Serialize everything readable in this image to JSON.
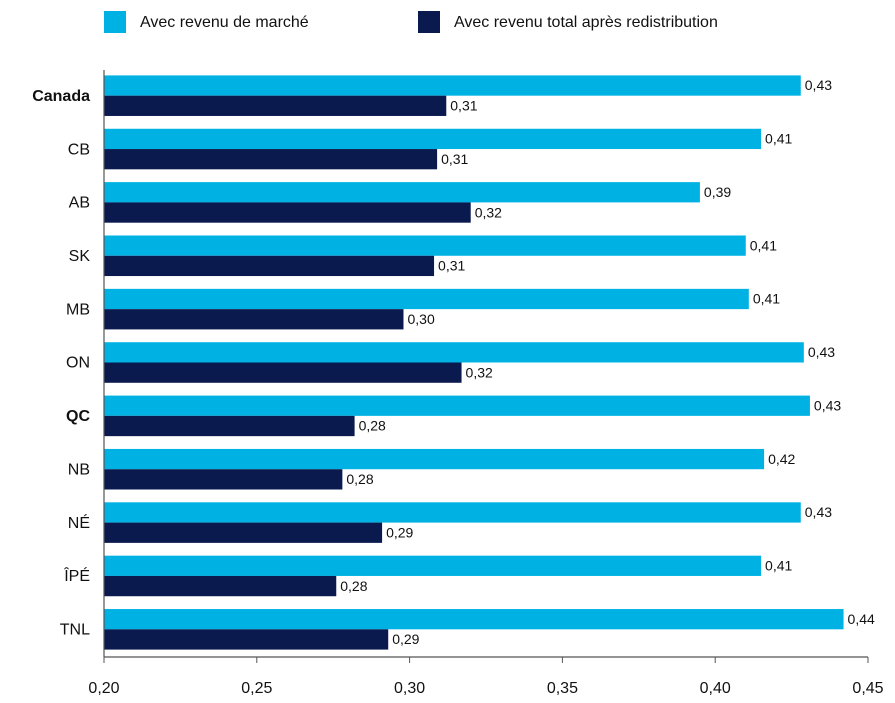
{
  "chart_data": {
    "type": "hbar",
    "categories": [
      "Canada",
      "CB",
      "AB",
      "SK",
      "MB",
      "ON",
      "QC",
      "NB",
      "NÉ",
      "ÎPÉ",
      "TNL"
    ],
    "emphasized_categories": [
      "Canada",
      "QC"
    ],
    "series": [
      {
        "name": "Avec revenu de marché",
        "color": "#00b2e3",
        "values": [
          0.428,
          0.415,
          0.395,
          0.41,
          0.411,
          0.429,
          0.431,
          0.416,
          0.428,
          0.415,
          0.442
        ],
        "value_labels": [
          "0,43",
          "0,41",
          "0,39",
          "0,41",
          "0,41",
          "0,43",
          "0,43",
          "0,42",
          "0,43",
          "0,41",
          "0,44"
        ]
      },
      {
        "name": "Avec revenu total après redistribution",
        "color": "#0a1a4f",
        "values": [
          0.312,
          0.309,
          0.32,
          0.308,
          0.298,
          0.317,
          0.282,
          0.278,
          0.291,
          0.276,
          0.293
        ],
        "value_labels": [
          "0,31",
          "0,31",
          "0,32",
          "0,31",
          "0,30",
          "0,32",
          "0,28",
          "0,28",
          "0,29",
          "0,28",
          "0,29"
        ]
      }
    ],
    "xlim": [
      0.2,
      0.45
    ],
    "xticks": [
      {
        "value": 0.2,
        "label": "0,20"
      },
      {
        "value": 0.25,
        "label": "0,25"
      },
      {
        "value": 0.3,
        "label": "0,30"
      },
      {
        "value": 0.35,
        "label": "0,35"
      },
      {
        "value": 0.4,
        "label": "0,40"
      },
      {
        "value": 0.45,
        "label": "0,45"
      }
    ],
    "grid": false
  }
}
